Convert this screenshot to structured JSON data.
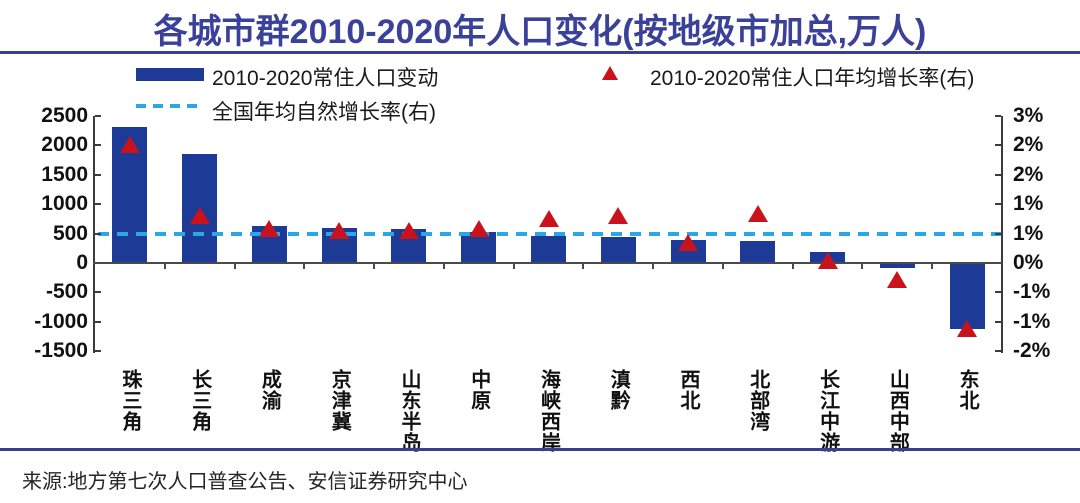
{
  "title": "各城市群2010-2020年人口变化(按地级市加总,万人)",
  "legend": {
    "bar_label": "2010-2020常住人口变动",
    "triangle_label": "2010-2020常住人口年均增长率(右)",
    "dashed_label": "全国年均自然增长率(右)"
  },
  "source": "来源:地方第七次人口普查公告、安信证券研究中心",
  "colors": {
    "bar": "#1d3a97",
    "triangle": "#c9121c",
    "dashed_line": "#2aa7e8",
    "title_navy": "#3a4199",
    "rule_navy": "#39418f",
    "axis_gray": "#4a4a4a"
  },
  "chart_data": {
    "type": "bar",
    "title": "各城市群2010-2020年人口变化(按地级市加总,万人)",
    "categories": [
      "珠三角",
      "长三角",
      "成渝",
      "京津冀",
      "山东半岛",
      "中原",
      "海峡西岸",
      "滇黔",
      "西北",
      "北部湾",
      "长江中游",
      "山西中部",
      "东北"
    ],
    "series": [
      {
        "name": "2010-2020常住人口变动",
        "type": "bar",
        "axis": "left",
        "unit": "万人",
        "values": [
          2320,
          1860,
          630,
          600,
          580,
          520,
          460,
          440,
          390,
          370,
          180,
          -90,
          -1120
        ]
      },
      {
        "name": "2010-2020常住人口年均增长率(右)",
        "type": "scatter",
        "marker": "triangle",
        "axis": "right",
        "unit": "%",
        "values": [
          2.4,
          0.95,
          0.7,
          0.65,
          0.65,
          0.7,
          0.9,
          0.95,
          0.4,
          1.0,
          0.05,
          -0.35,
          -1.35
        ]
      }
    ],
    "reference_line": {
      "name": "全国年均自然增长率(右)",
      "axis": "right",
      "value": 0.6,
      "style": "dashed"
    },
    "left_axis": {
      "ylim": [
        -1500,
        2500
      ],
      "tick_values": [
        2500,
        2000,
        1500,
        1000,
        500,
        0,
        -500,
        -1000,
        -1500
      ],
      "tick_labels": [
        "2500",
        "2000",
        "1500",
        "1000",
        "500",
        "0",
        "-500",
        "-1000",
        "-1500"
      ]
    },
    "right_axis": {
      "ylim": [
        -1.8,
        3.0
      ],
      "tick_values": [
        3.0,
        2.4,
        1.8,
        1.2,
        0.6,
        0,
        -0.6,
        -1.2,
        -1.8
      ],
      "tick_labels": [
        "3%",
        "2%",
        "2%",
        "1%",
        "1%",
        "0%",
        "-1%",
        "-1%",
        "-2%"
      ]
    },
    "grid": false,
    "legend_position": "top"
  }
}
